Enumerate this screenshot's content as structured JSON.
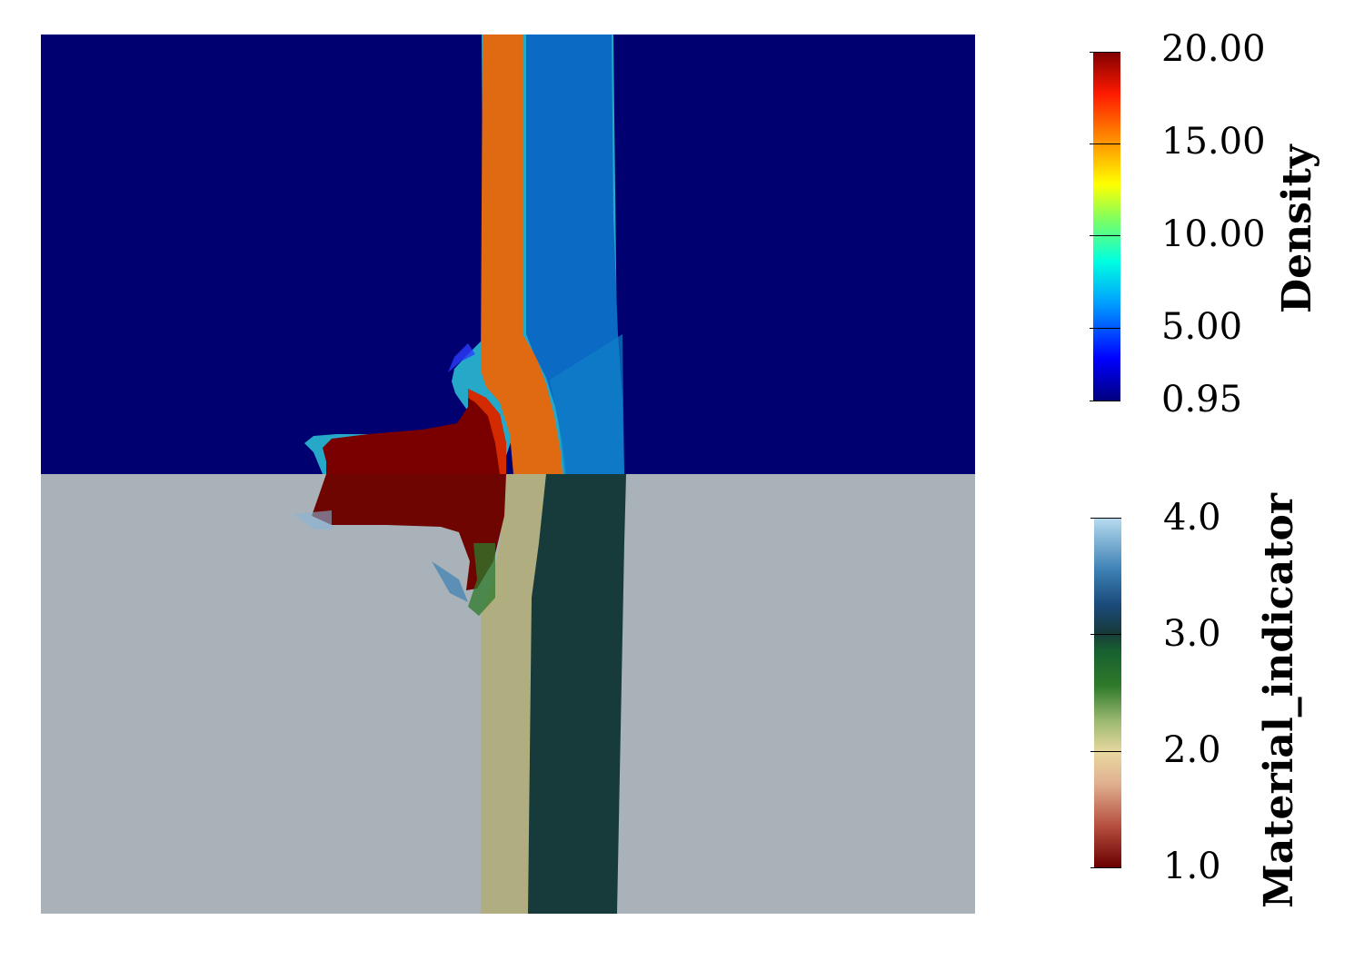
{
  "colorbars": {
    "density": {
      "title": "Density",
      "ticks": [
        "20.00",
        "15.00",
        "10.00",
        "5.00",
        "0.95"
      ],
      "range": [
        0.95,
        20.0
      ]
    },
    "material": {
      "title": "Material_indicator",
      "ticks": [
        "4.0",
        "3.0",
        "2.0",
        "1.0"
      ],
      "range": [
        1.0,
        4.0
      ]
    }
  },
  "colors": {
    "top_background": "#000070",
    "bottom_background": "#a8b2b8",
    "dense_column": "#dd6a10",
    "light_column": "#0a6ac4",
    "projectile": "#7a0000",
    "material_2_column": "#b0ae80",
    "material_3_column": "#173a3a"
  }
}
